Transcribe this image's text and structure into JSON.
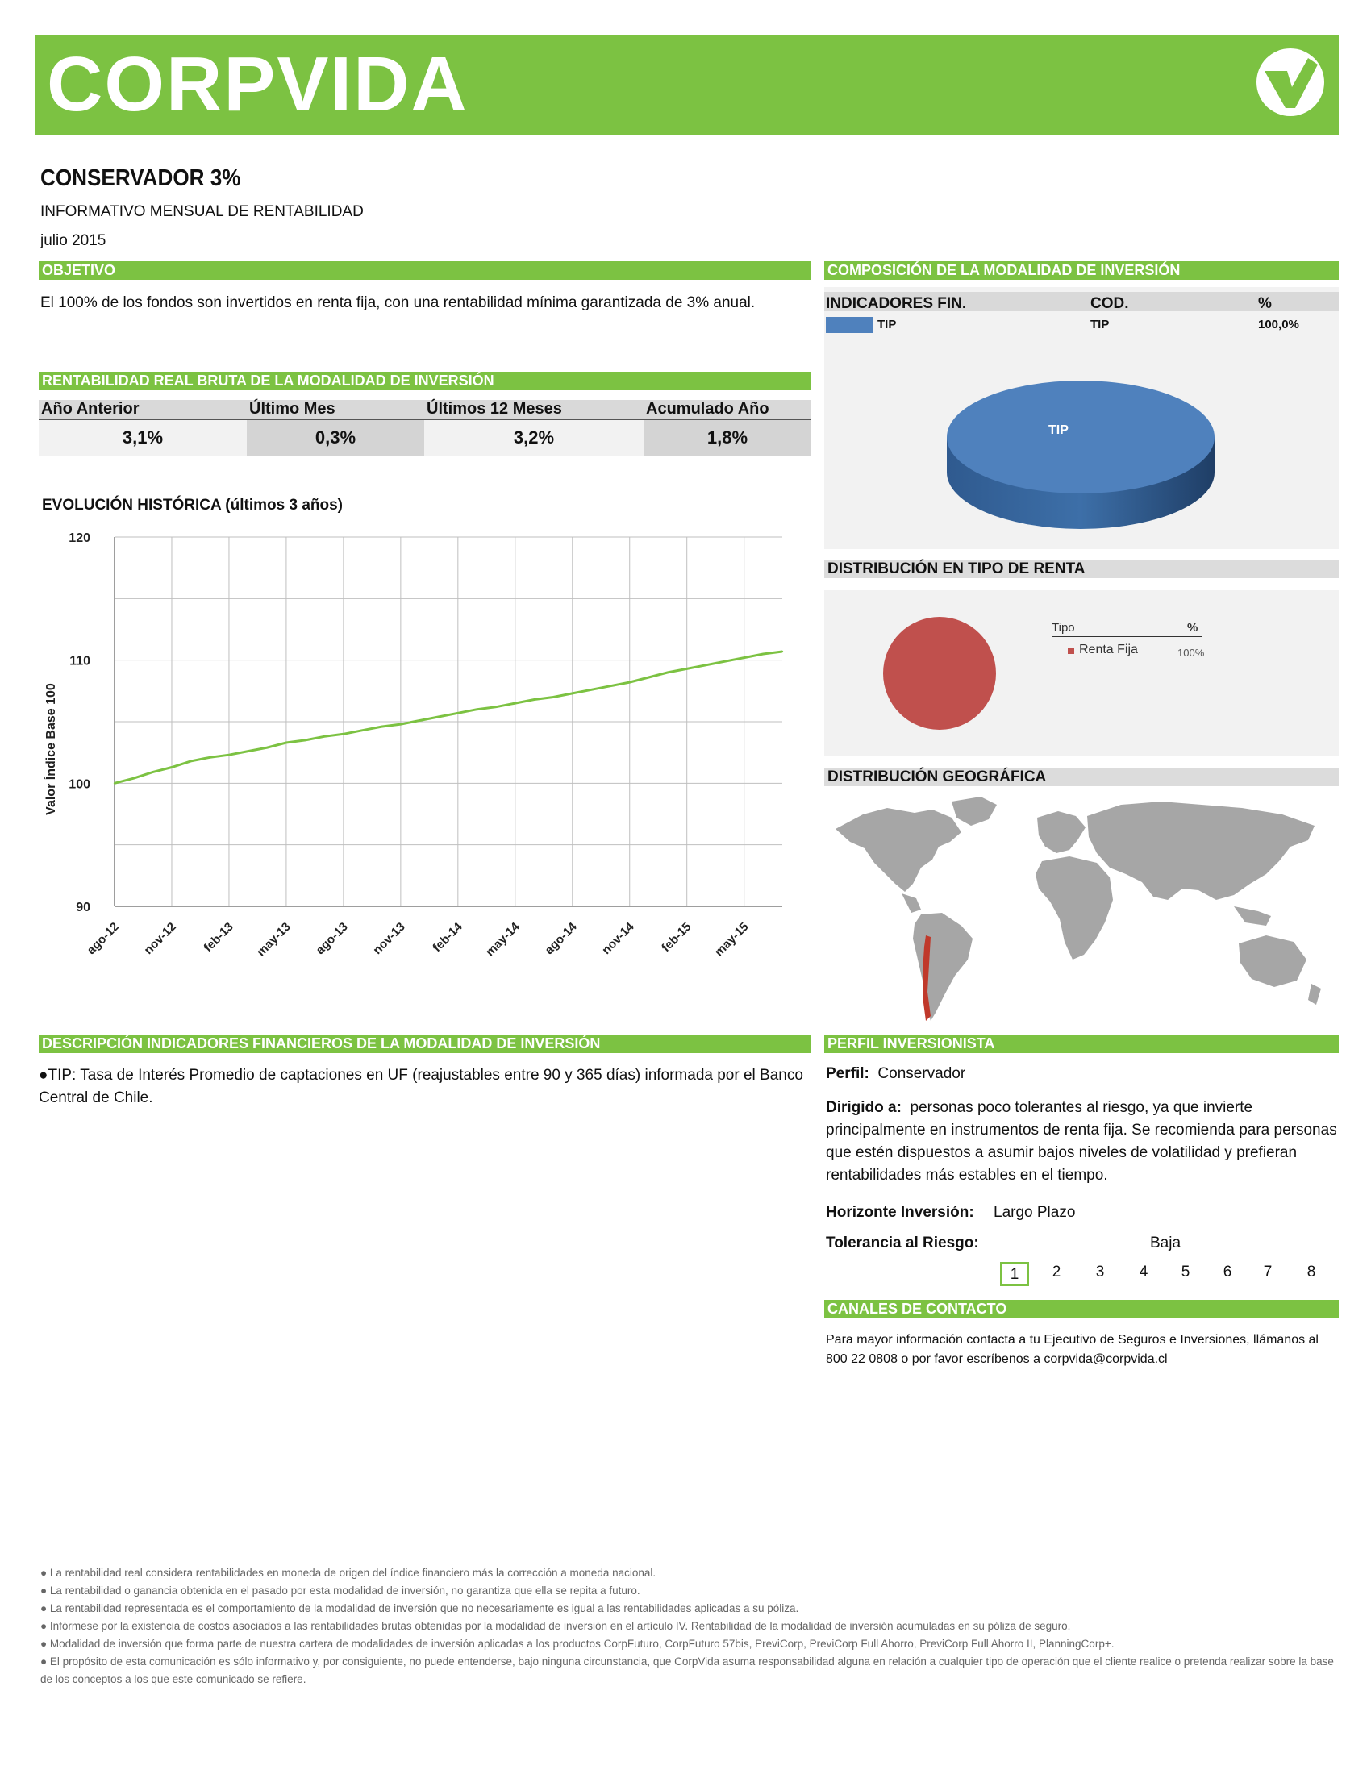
{
  "brand": {
    "name": "CORPVIDA"
  },
  "header": {
    "title": "CONSERVADOR 3%",
    "subtitle": "INFORMATIVO MENSUAL DE RENTABILIDAD",
    "date": "julio 2015"
  },
  "objetivo": {
    "heading": "OBJETIVO",
    "text": "El 100% de los fondos son invertidos en renta fija, con una rentabilidad mínima garantizada de 3% anual."
  },
  "rentabilidad": {
    "heading": "RENTABILIDAD REAL BRUTA DE LA MODALIDAD DE INVERSIÓN",
    "columns": [
      "Año Anterior",
      "Último Mes",
      "Últimos 12 Meses",
      "Acumulado Año"
    ],
    "values": [
      "3,1%",
      "0,3%",
      "3,2%",
      "1,8%"
    ]
  },
  "composicion": {
    "heading": "COMPOSICIÓN DE LA MODALIDAD DE INVERSIÓN",
    "columns": [
      "INDICADORES FIN.",
      "COD.",
      "%"
    ],
    "rows": [
      {
        "indicador": "TIP",
        "cod": "TIP",
        "pct": "100,0%"
      }
    ],
    "pie_label": "TIP",
    "colors": {
      "slice": "#4f81bd"
    }
  },
  "distribucion_renta": {
    "heading": "DISTRIBUCIÓN EN TIPO DE RENTA",
    "legend_tipo": "Tipo",
    "legend_pct": "%",
    "item_label": "Renta Fija",
    "item_pct": "100%",
    "colors": {
      "slice": "#c0504d"
    }
  },
  "distribucion_geo": {
    "heading": "DISTRIBUCIÓN GEOGRÁFICA",
    "highlight": "Chile"
  },
  "chart_data": {
    "type": "line",
    "title": "EVOLUCIÓN HISTÓRICA (últimos 3 años)",
    "xlabel": "",
    "ylabel": "Valor Índice Base 100",
    "ylim": [
      90,
      120
    ],
    "yticks": [
      90,
      100,
      110,
      120
    ],
    "grid": true,
    "x_ticks": [
      "ago-12",
      "nov-12",
      "feb-13",
      "may-13",
      "ago-13",
      "nov-13",
      "feb-14",
      "may-14",
      "ago-14",
      "nov-14",
      "feb-15",
      "may-15"
    ],
    "series": [
      {
        "color": "#7cc242",
        "x": [
          "ago-12",
          "sep-12",
          "oct-12",
          "nov-12",
          "dic-12",
          "ene-13",
          "feb-13",
          "mar-13",
          "abr-13",
          "may-13",
          "jun-13",
          "jul-13",
          "ago-13",
          "sep-13",
          "oct-13",
          "nov-13",
          "dic-13",
          "ene-14",
          "feb-14",
          "mar-14",
          "abr-14",
          "may-14",
          "jun-14",
          "jul-14",
          "ago-14",
          "sep-14",
          "oct-14",
          "nov-14",
          "dic-14",
          "ene-15",
          "feb-15",
          "mar-15",
          "abr-15",
          "may-15",
          "jun-15",
          "jul-15"
        ],
        "values": [
          100.0,
          100.4,
          100.9,
          101.3,
          101.8,
          102.1,
          102.3,
          102.6,
          102.9,
          103.3,
          103.5,
          103.8,
          104.0,
          104.3,
          104.6,
          104.8,
          105.1,
          105.4,
          105.7,
          106.0,
          106.2,
          106.5,
          106.8,
          107.0,
          107.3,
          107.6,
          107.9,
          108.2,
          108.6,
          109.0,
          109.3,
          109.6,
          109.9,
          110.2,
          110.5,
          110.7
        ]
      }
    ]
  },
  "descripcion": {
    "heading": "DESCRIPCIÓN INDICADORES FINANCIEROS DE LA MODALIDAD DE INVERSIÓN",
    "text": "●TIP: Tasa de Interés Promedio de captaciones en UF (reajustables entre 90 y 365 días) informada por el Banco Central de Chile."
  },
  "perfil": {
    "heading": "PERFIL INVERSIONISTA",
    "perfil_label": "Perfil:",
    "perfil_value": "Conservador",
    "dirigido_label": "Dirigido a:",
    "dirigido_value": "personas poco tolerantes al riesgo, ya que invierte principalmente en instrumentos de renta fija. Se recomienda para personas que estén dispuestos a asumir bajos niveles de volatilidad y prefieran rentabilidades más estables en el tiempo.",
    "horizonte_label": "Horizonte Inversión:",
    "horizonte_value": "Largo Plazo",
    "tolerancia_label": "Tolerancia al Riesgo:",
    "tolerancia_value": "Baja",
    "risk_levels": [
      "1",
      "2",
      "3",
      "4",
      "5",
      "6",
      "7",
      "8"
    ],
    "risk_selected": 1
  },
  "contacto": {
    "heading": "CANALES DE CONTACTO",
    "text": "Para mayor información contacta a tu Ejecutivo de Seguros e Inversiones, llámanos al 800 22 0808 o por favor escríbenos a corpvida@corpvida.cl"
  },
  "footnotes": [
    "● La rentabilidad real considera rentabilidades en moneda de origen del índice financiero más la corrección a moneda nacional.",
    "● La rentabilidad o ganancia obtenida en el pasado por esta modalidad de inversión, no garantiza que ella se repita a futuro.",
    "● La rentabilidad representada es el comportamiento de la modalidad de inversión que no necesariamente es igual a las rentabilidades aplicadas a su póliza.",
    "● Infórmese por la existencia de costos asociados a las rentabilidades brutas obtenidas por la modalidad de inversión en el artículo IV. Rentabilidad de la modalidad de inversión acumuladas en su póliza de seguro.",
    "● Modalidad de inversión que forma parte de nuestra cartera de modalidades de inversión aplicadas a los productos CorpFuturo, CorpFuturo 57bis, PreviCorp, PreviCorp Full Ahorro, PreviCorp Full Ahorro II, PlanningCorp+.",
    "● El propósito de esta comunicación es sólo informativo y, por consiguiente, no puede entenderse, bajo ninguna circunstancia, que CorpVida asuma responsabilidad alguna en relación a cualquier tipo de operación que el cliente realice o pretenda realizar sobre la base de los conceptos a los que este comunicado se refiere."
  ]
}
